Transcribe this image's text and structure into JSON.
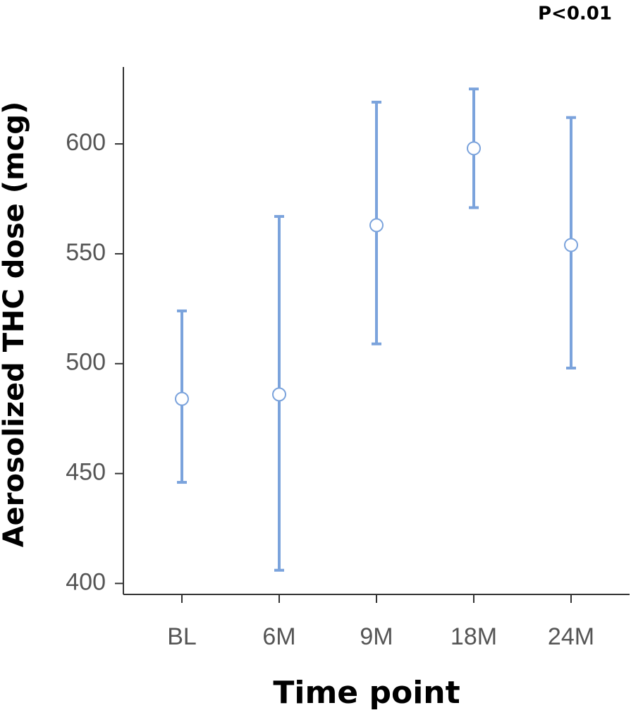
{
  "chart_data": {
    "type": "errorbar",
    "annotation": "P<0.01",
    "x_label": "Time point",
    "y_label": "Aerosolized THC dose (mcg)",
    "categories": [
      "BL",
      "6M",
      "9M",
      "18M",
      "24M"
    ],
    "series": [
      {
        "color": "#7ba3dc",
        "values": [
          484,
          486,
          563,
          598,
          554
        ],
        "lower": [
          446,
          406,
          509,
          571,
          498
        ],
        "upper": [
          524,
          567,
          619,
          625,
          612
        ]
      }
    ],
    "ylim": [
      395,
      635
    ],
    "yticks": [
      400,
      450,
      500,
      550,
      600
    ]
  }
}
